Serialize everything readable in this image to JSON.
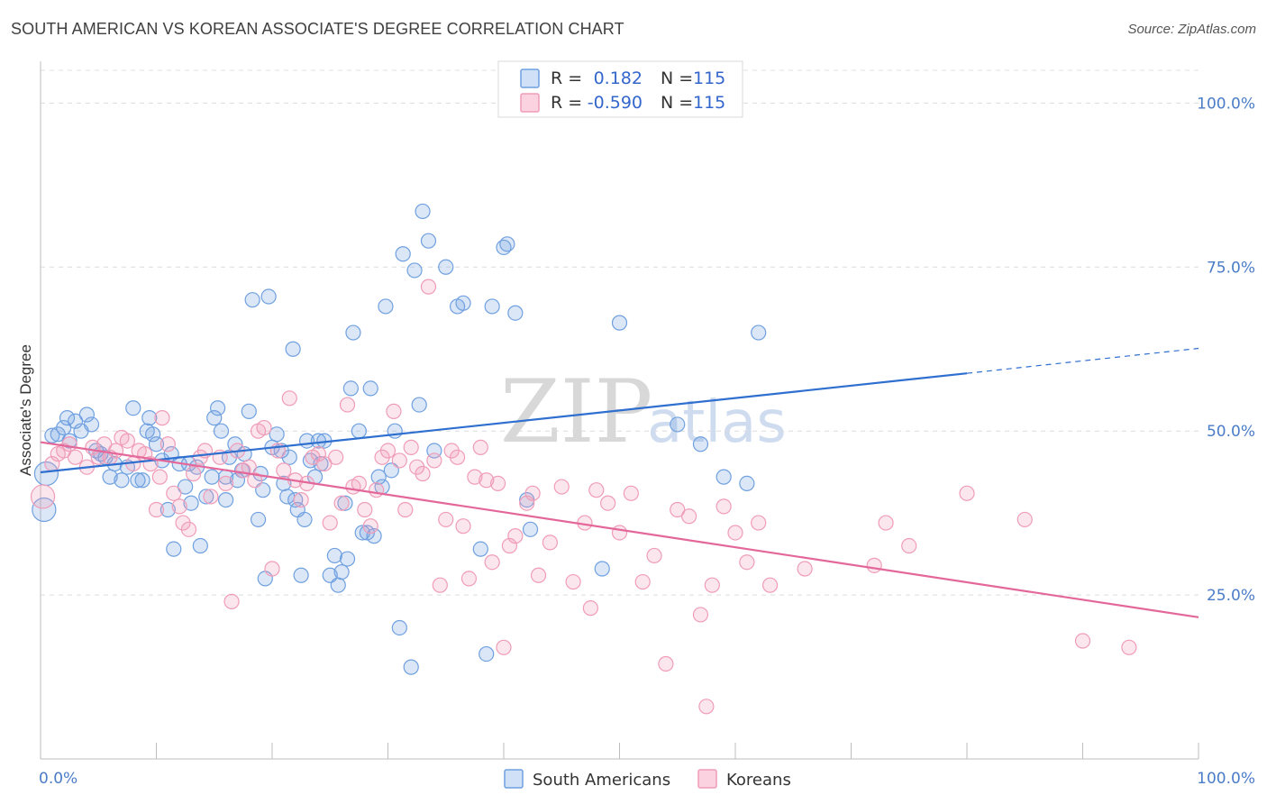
{
  "header": {
    "title": "SOUTH AMERICAN VS KOREAN ASSOCIATE'S DEGREE CORRELATION CHART",
    "source": "Source: ZipAtlas.com"
  },
  "watermark": {
    "zip": "ZIP",
    "atlas": "atlas"
  },
  "legend": {
    "r_label": "R =",
    "n_label": "N =",
    "rows": [
      {
        "r": "0.182",
        "n": "115",
        "color": "#6fa0e0"
      },
      {
        "r": "-0.590",
        "n": "115",
        "color": "#f09cb8"
      }
    ]
  },
  "bottom_legend": [
    {
      "label": "South Americans",
      "color": "#6fa0e0"
    },
    {
      "label": "Koreans",
      "color": "#f09cb8"
    }
  ],
  "chart_data": {
    "type": "scatter",
    "title": "SOUTH AMERICAN VS KOREAN ASSOCIATE'S DEGREE CORRELATION CHART",
    "xlabel": "",
    "ylabel": "Associate's Degree",
    "xlim": [
      0,
      100
    ],
    "ylim": [
      0,
      105
    ],
    "x_tick_labels": [
      "0.0%",
      "100.0%"
    ],
    "y_tick_labels": [
      "100.0%",
      "75.0%",
      "50.0%",
      "25.0%"
    ],
    "y_ticks": [
      100,
      75,
      50,
      25
    ],
    "grid": true,
    "legend_position": "top-center",
    "series": [
      {
        "name": "South Americans",
        "color": "#6fa0e0",
        "trend": {
          "x": [
            0,
            80
          ],
          "y": [
            43.7,
            58.8
          ],
          "dashed_to": [
            100,
            62.6
          ]
        },
        "points": [
          [
            0.3,
            38
          ],
          [
            0.5,
            43.5
          ],
          [
            1,
            49.3
          ],
          [
            1.5,
            49.5
          ],
          [
            2,
            50.5
          ],
          [
            2.3,
            52
          ],
          [
            2.5,
            48.5
          ],
          [
            3,
            51.5
          ],
          [
            3.5,
            50
          ],
          [
            4,
            52.5
          ],
          [
            4.4,
            51
          ],
          [
            4.8,
            47
          ],
          [
            5.2,
            46.5
          ],
          [
            5.6,
            46
          ],
          [
            6,
            43
          ],
          [
            6.4,
            45
          ],
          [
            7,
            42.5
          ],
          [
            7.5,
            44.5
          ],
          [
            8,
            53.5
          ],
          [
            8.4,
            42.5
          ],
          [
            8.8,
            42.5
          ],
          [
            9.2,
            50
          ],
          [
            9.4,
            52
          ],
          [
            9.7,
            49.5
          ],
          [
            10,
            48
          ],
          [
            10.5,
            45.5
          ],
          [
            11,
            38
          ],
          [
            11.3,
            46.5
          ],
          [
            11.5,
            32
          ],
          [
            12,
            45
          ],
          [
            12.5,
            41.5
          ],
          [
            12.8,
            45
          ],
          [
            13,
            39
          ],
          [
            13.5,
            44.5
          ],
          [
            13.8,
            32.5
          ],
          [
            14.3,
            40
          ],
          [
            14.8,
            43
          ],
          [
            15,
            52
          ],
          [
            15.3,
            53.5
          ],
          [
            15.6,
            50
          ],
          [
            16,
            43
          ],
          [
            16,
            39.5
          ],
          [
            16.3,
            46
          ],
          [
            16.8,
            48
          ],
          [
            17,
            42.5
          ],
          [
            17.4,
            44
          ],
          [
            17.6,
            46.5
          ],
          [
            18,
            53
          ],
          [
            18.3,
            70
          ],
          [
            18.8,
            36.5
          ],
          [
            19,
            43.5
          ],
          [
            19.2,
            41
          ],
          [
            19.4,
            27.5
          ],
          [
            19.7,
            70.5
          ],
          [
            20,
            47.5
          ],
          [
            20.4,
            49.5
          ],
          [
            20.8,
            47
          ],
          [
            21,
            42
          ],
          [
            21.3,
            40
          ],
          [
            21.5,
            46
          ],
          [
            21.8,
            62.5
          ],
          [
            22,
            39.5
          ],
          [
            22.2,
            38
          ],
          [
            22.5,
            28
          ],
          [
            22.8,
            36.5
          ],
          [
            23,
            48.5
          ],
          [
            23.3,
            45.5
          ],
          [
            23.7,
            43
          ],
          [
            24,
            48.5
          ],
          [
            24.2,
            45
          ],
          [
            24.5,
            48.5
          ],
          [
            25,
            28
          ],
          [
            25.4,
            31
          ],
          [
            25.7,
            26.5
          ],
          [
            26,
            28.5
          ],
          [
            26.3,
            39
          ],
          [
            26.5,
            30.5
          ],
          [
            26.8,
            56.5
          ],
          [
            27,
            65
          ],
          [
            27.5,
            50
          ],
          [
            27.8,
            34.5
          ],
          [
            28.2,
            34.5
          ],
          [
            28.5,
            56.5
          ],
          [
            28.8,
            34
          ],
          [
            29.2,
            43
          ],
          [
            29.5,
            41.5
          ],
          [
            29.8,
            69
          ],
          [
            30.3,
            44
          ],
          [
            30.6,
            50
          ],
          [
            31,
            20
          ],
          [
            31.3,
            77
          ],
          [
            32,
            14
          ],
          [
            32.3,
            74.5
          ],
          [
            32.7,
            54
          ],
          [
            33,
            83.5
          ],
          [
            33.5,
            79
          ],
          [
            34,
            47
          ],
          [
            35,
            75
          ],
          [
            36,
            69
          ],
          [
            36.5,
            69.5
          ],
          [
            38,
            32
          ],
          [
            38.5,
            16
          ],
          [
            39,
            69
          ],
          [
            40,
            78
          ],
          [
            40.3,
            78.5
          ],
          [
            41,
            68
          ],
          [
            42,
            39.5
          ],
          [
            42.3,
            35
          ],
          [
            48.5,
            29
          ],
          [
            50,
            66.5
          ],
          [
            55,
            51
          ],
          [
            57,
            48
          ],
          [
            59,
            43
          ],
          [
            61,
            42
          ],
          [
            62,
            65
          ]
        ]
      },
      {
        "name": "Koreans",
        "color": "#f09cb8",
        "trend": {
          "x": [
            0,
            100
          ],
          "y": [
            48.3,
            21.6
          ]
        },
        "points": [
          [
            0.2,
            40
          ],
          [
            1,
            45
          ],
          [
            1.5,
            46.5
          ],
          [
            2,
            47
          ],
          [
            2.5,
            48
          ],
          [
            3,
            46
          ],
          [
            4,
            44.5
          ],
          [
            4.5,
            47.5
          ],
          [
            5,
            46
          ],
          [
            5.5,
            48
          ],
          [
            6,
            46
          ],
          [
            6.5,
            47
          ],
          [
            7,
            49
          ],
          [
            7.5,
            48.5
          ],
          [
            8,
            45
          ],
          [
            8.5,
            47
          ],
          [
            9,
            46.5
          ],
          [
            9.5,
            45
          ],
          [
            10,
            38
          ],
          [
            10.3,
            43
          ],
          [
            10.5,
            52
          ],
          [
            11,
            48
          ],
          [
            11.5,
            40.5
          ],
          [
            12,
            38.5
          ],
          [
            12.3,
            36
          ],
          [
            12.8,
            35
          ],
          [
            13.2,
            43.5
          ],
          [
            13.8,
            46
          ],
          [
            14.2,
            47
          ],
          [
            14.7,
            40
          ],
          [
            15.5,
            46
          ],
          [
            16,
            42
          ],
          [
            16.5,
            24
          ],
          [
            17,
            47
          ],
          [
            17.5,
            44
          ],
          [
            18,
            44.5
          ],
          [
            18.5,
            42.5
          ],
          [
            18.8,
            50
          ],
          [
            19.3,
            50.5
          ],
          [
            20,
            29
          ],
          [
            20.5,
            47
          ],
          [
            21,
            44
          ],
          [
            21.5,
            55
          ],
          [
            22,
            42.5
          ],
          [
            22.5,
            39.5
          ],
          [
            23,
            42
          ],
          [
            23.5,
            46
          ],
          [
            24,
            46.5
          ],
          [
            24.5,
            45
          ],
          [
            25,
            36
          ],
          [
            25.5,
            46
          ],
          [
            26,
            39
          ],
          [
            26.5,
            54
          ],
          [
            27,
            41.5
          ],
          [
            27.5,
            42
          ],
          [
            28,
            38
          ],
          [
            28.5,
            35.5
          ],
          [
            29,
            41
          ],
          [
            29.5,
            46
          ],
          [
            30,
            47
          ],
          [
            30.5,
            53
          ],
          [
            31,
            45.5
          ],
          [
            31.5,
            38
          ],
          [
            32,
            47.5
          ],
          [
            32.5,
            44.5
          ],
          [
            33,
            43.5
          ],
          [
            33.5,
            72
          ],
          [
            34,
            45.5
          ],
          [
            34.5,
            26.5
          ],
          [
            35,
            36.5
          ],
          [
            35.5,
            47
          ],
          [
            36,
            46
          ],
          [
            36.5,
            35.5
          ],
          [
            37,
            27.5
          ],
          [
            37.5,
            43
          ],
          [
            38,
            47.5
          ],
          [
            38.5,
            42.5
          ],
          [
            39,
            30
          ],
          [
            39.5,
            42
          ],
          [
            40,
            17
          ],
          [
            40.5,
            32.5
          ],
          [
            41,
            34
          ],
          [
            42,
            39
          ],
          [
            42.5,
            40.5
          ],
          [
            43,
            28
          ],
          [
            44,
            33
          ],
          [
            45,
            41.5
          ],
          [
            46,
            27
          ],
          [
            47,
            36
          ],
          [
            47.5,
            23
          ],
          [
            48,
            41
          ],
          [
            49,
            39
          ],
          [
            50,
            34.5
          ],
          [
            51,
            40.5
          ],
          [
            52,
            27
          ],
          [
            53,
            31
          ],
          [
            54,
            14.5
          ],
          [
            55,
            38
          ],
          [
            56,
            37
          ],
          [
            57,
            22
          ],
          [
            58,
            26.5
          ],
          [
            59,
            38.5
          ],
          [
            60,
            34.5
          ],
          [
            61,
            30
          ],
          [
            62,
            36
          ],
          [
            63,
            26.5
          ],
          [
            66,
            29
          ],
          [
            72,
            29.5
          ],
          [
            73,
            36
          ],
          [
            75,
            32.5
          ],
          [
            80,
            40.5
          ],
          [
            85,
            36.5
          ],
          [
            90,
            18
          ],
          [
            94,
            17
          ],
          [
            57.5,
            8
          ]
        ]
      }
    ]
  }
}
